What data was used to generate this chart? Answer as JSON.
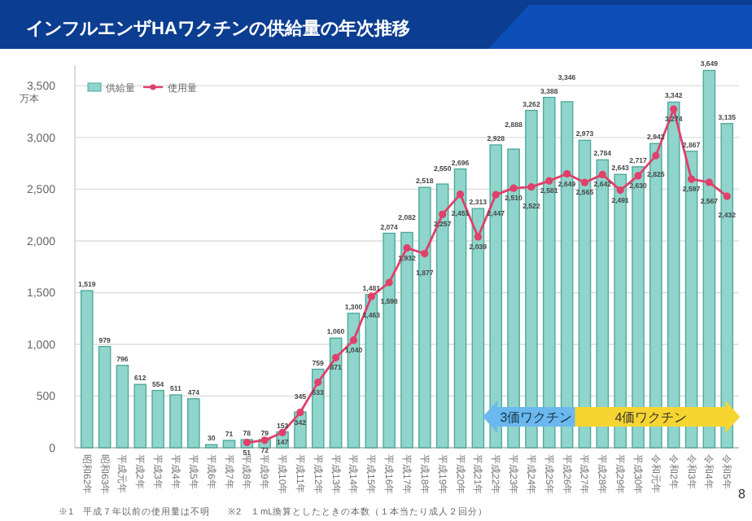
{
  "chart_data": {
    "type": "bar",
    "title": "インフルエンザHAワクチンの供給量の年次推移",
    "ylabel": "万本",
    "categories": [
      "昭和62年",
      "昭和63年",
      "平成元年",
      "平成2年",
      "平成3年",
      "平成4年",
      "平成5年",
      "平成6年",
      "平成7年",
      "平成8年",
      "平成9年",
      "平成10年",
      "平成11年",
      "平成12年",
      "平成13年",
      "平成14年",
      "平成15年",
      "平成16年",
      "平成17年",
      "平成18年",
      "平成19年",
      "平成20年",
      "平成21年",
      "平成22年",
      "平成23年",
      "平成24年",
      "平成25年",
      "平成26年",
      "平成27年",
      "平成28年",
      "平成29年",
      "平成30年",
      "令和元年",
      "令和2年",
      "令和3年",
      "令和4年",
      "令和5年"
    ],
    "series": [
      {
        "name": "供給量",
        "color": "#8fd5cb",
        "values": [
          1519,
          979,
          796,
          612,
          554,
          511,
          474,
          30,
          71,
          78,
          79,
          153,
          345,
          759,
          1060,
          1300,
          1481,
          2074,
          2082,
          2518,
          2550,
          2696,
          2313,
          2928,
          2888,
          3262,
          3388,
          3346,
          2973,
          2784,
          2643,
          2717,
          2942,
          3342,
          2867,
          3649,
          3135
        ],
        "value_labels": [
          "1,519",
          "979",
          "796",
          "612",
          "554",
          "511",
          "474",
          "30",
          "71",
          "78",
          "79",
          "153",
          "345",
          "759",
          "1,060",
          "1,300",
          "1,481",
          "2,074",
          "2,082",
          "2,518",
          "2,550",
          "2,696",
          "2,313",
          "2,928",
          "2,888",
          "3,262",
          "3,388",
          "3,346",
          "2,973",
          "2,784",
          "2,643",
          "2,717",
          "2,942",
          "3,342",
          "2,867",
          "3,649",
          "3,135"
        ]
      },
      {
        "name": "使用量",
        "type": "line",
        "color": "#e0406a",
        "values": [
          null,
          null,
          null,
          null,
          null,
          null,
          null,
          null,
          null,
          51,
          72,
          147,
          342,
          633,
          871,
          1040,
          1463,
          1598,
          1932,
          1877,
          2257,
          2451,
          2039,
          2447,
          2510,
          2522,
          2581,
          2649,
          2565,
          2642,
          2491,
          2630,
          2825,
          3274,
          2597,
          2567,
          2432
        ],
        "value_labels": [
          null,
          null,
          null,
          null,
          null,
          null,
          null,
          null,
          null,
          "51",
          "72",
          "147",
          "342",
          "633",
          "871",
          "1,040",
          "1,463",
          "1,598",
          "1,932",
          "1,877",
          "2,257",
          "2,451",
          "2,039",
          "2,447",
          "2,510",
          "2,522",
          "2,581",
          "2,649",
          "2,565",
          "2,642",
          "2,491",
          "2,630",
          "2,825",
          "3,274",
          "2,597",
          "2,567",
          "2,432"
        ]
      }
    ],
    "ylim": [
      0,
      3700
    ],
    "yticks": [
      0,
      {
        "value": 500,
        "label": "500"
      },
      {
        "value": 1000,
        "label": "1,000"
      },
      {
        "value": 1500,
        "label": "1,500"
      },
      {
        "value": 2000,
        "label": "2,000"
      },
      {
        "value": 2500,
        "label": "2,500"
      },
      {
        "value": 3000,
        "label": "3,000"
      },
      {
        "value": 3500,
        "label": "3,500"
      }
    ],
    "grid": "y",
    "legend": "top left",
    "marker": "circle",
    "annotations": [
      "3価ワクチン",
      "4価ワクチン",
      "※1　平成７年以前の使用量は不明",
      "※2　１mL換算としたときの本数（１本当たり成人２回分）",
      "8"
    ]
  }
}
